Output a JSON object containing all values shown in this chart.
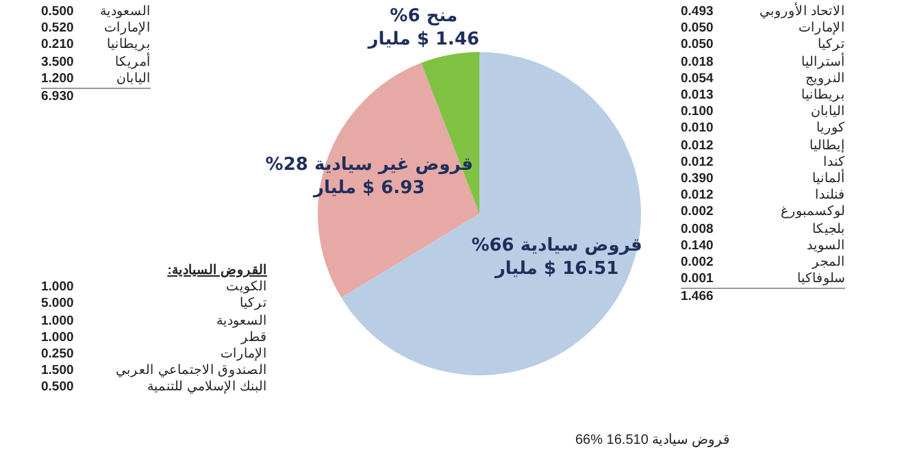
{
  "chart_data": {
    "type": "pie",
    "categories": [
      "قروض سيادية",
      "قروض غير سيادية",
      "منح"
    ],
    "values": [
      16.51,
      6.93,
      1.46
    ],
    "colors": [
      "#b9cde5",
      "#e6a9a6",
      "#7fc241"
    ],
    "value_labels": [
      "16.51 $ مليار",
      "6.93 $ مليار",
      "1.46 $ مليار"
    ],
    "legend": false,
    "annotations": [
      {
        "text": "66%",
        "x": "قروض سيادية"
      },
      {
        "text": "28%",
        "x": "قروض غير سيادية"
      },
      {
        "text": "6%",
        "x": "منح"
      },
      "السعودية 0.500\nالإمارات 0.520\nبريطانيا 0.210\nأمريكا 3.500\nاليابان 1.200\n6.930",
      "القروض السيادية:\nالكويت 1.000\nتركيا 5.000\nالسعودية 1.000\nقطر 1.000\nالإمارات 0.250\nالصندوق الاجتماعي العربي 1.500\nالبنك الإسلامي للتنمية 0.500",
      "الاتحاد الأوروبي 0.493\nالإمارات 0.050\nتركيا 0.050\nأستراليا 0.018\nالنرويج 0.054\nبريطانيا 0.013\nاليابان 0.100\nكوريا 0.010\nإيطاليا 0.012\nكندا 0.012\nألمانيا 0.390\nفنلندا 0.012\nلوكسمبورغ 0.002\nبلجيكا 0.008\nالسويد 0.140\nالمجر 0.002\nسلوفاكيا 0.001\n1.466",
      "قروض سيادية 16.510 %66"
    ]
  }
}
